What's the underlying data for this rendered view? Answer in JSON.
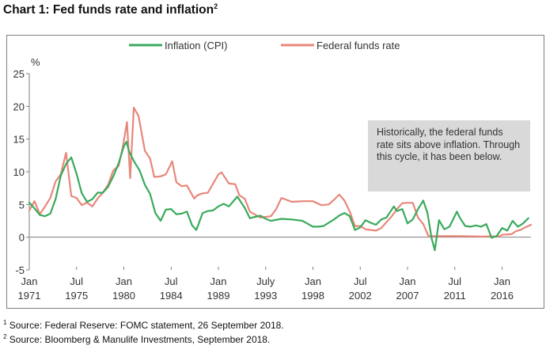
{
  "title": {
    "text": "Chart 1: Fed funds rate and inflation",
    "sup": "2"
  },
  "note": "Historically, the federal funds rate sits above inflation. Through this cycle, it has been below.",
  "sources": [
    {
      "sup": "1",
      "text": "Source: Federal Reserve: FOMC statement, 26 September 2018."
    },
    {
      "sup": "2",
      "text": "Source: Bloomberg & Manulife Investments, September 2018."
    }
  ],
  "colors": {
    "inflation": "#3aaa5c",
    "fed_funds": "#e8877a",
    "axis": "#7f7f7f",
    "note_bg": "#d9d9d9"
  },
  "chart_data": {
    "type": "line",
    "title": "Chart 1: Fed funds rate and inflation",
    "ylabel": "%",
    "ylim": [
      -5,
      25
    ],
    "yticks": [
      -5,
      0,
      5,
      10,
      15,
      20,
      25
    ],
    "xlim": [
      1971.0,
      2018.75
    ],
    "xticks": [
      {
        "x": 1971.0,
        "line1": "Jan",
        "line2": "1971"
      },
      {
        "x": 1975.5,
        "line1": "Jul",
        "line2": "1975"
      },
      {
        "x": 1980.0,
        "line1": "Jan",
        "line2": "1980"
      },
      {
        "x": 1984.5,
        "line1": "Jul",
        "line2": "1984"
      },
      {
        "x": 1989.0,
        "line1": "Jan",
        "line2": "1989"
      },
      {
        "x": 1993.5,
        "line1": "July",
        "line2": "1993"
      },
      {
        "x": 1998.0,
        "line1": "Jan",
        "line2": "1998"
      },
      {
        "x": 2002.5,
        "line1": "Jul",
        "line2": "2002"
      },
      {
        "x": 2007.0,
        "line1": "Jan",
        "line2": "2007"
      },
      {
        "x": 2011.5,
        "line1": "Jul",
        "line2": "2011"
      },
      {
        "x": 2016.0,
        "line1": "Jan",
        "line2": "2016"
      }
    ],
    "grid": false,
    "legend": "top-center",
    "series": [
      {
        "name": "Inflation (CPI)",
        "color": "#3aaa5c",
        "x": [
          1971.0,
          1971.5,
          1972.0,
          1972.5,
          1973.0,
          1973.5,
          1974.0,
          1974.5,
          1975.0,
          1975.5,
          1976.0,
          1976.5,
          1977.0,
          1977.5,
          1978.0,
          1978.5,
          1979.0,
          1979.5,
          1980.0,
          1980.25,
          1980.5,
          1981.0,
          1981.5,
          1982.0,
          1982.5,
          1983.0,
          1983.5,
          1984.0,
          1984.5,
          1985.0,
          1985.5,
          1986.0,
          1986.5,
          1986.9,
          1987.5,
          1988.0,
          1988.5,
          1989.0,
          1989.5,
          1990.0,
          1990.8,
          1991.5,
          1992.0,
          1992.5,
          1993.0,
          1993.5,
          1994.0,
          1995.0,
          1996.0,
          1997.0,
          1998.0,
          1998.5,
          1999.0,
          2000.0,
          2000.5,
          2001.0,
          2001.5,
          2002.0,
          2002.5,
          2003.0,
          2003.5,
          2004.0,
          2004.5,
          2005.0,
          2005.7,
          2006.0,
          2006.5,
          2007.0,
          2007.5,
          2008.0,
          2008.5,
          2008.9,
          2009.3,
          2009.6,
          2010.0,
          2010.5,
          2011.0,
          2011.7,
          2012.0,
          2012.5,
          2013.0,
          2013.5,
          2014.0,
          2014.5,
          2015.0,
          2015.5,
          2016.0,
          2016.5,
          2017.0,
          2017.5,
          2018.0,
          2018.5
        ],
        "y": [
          5.3,
          4.4,
          3.4,
          3.2,
          3.6,
          5.8,
          9.4,
          11.2,
          12.2,
          9.7,
          6.7,
          5.4,
          5.8,
          6.8,
          6.8,
          7.7,
          9.3,
          11.3,
          13.9,
          14.6,
          13.1,
          11.5,
          10.2,
          8.0,
          6.6,
          3.7,
          2.5,
          4.2,
          4.3,
          3.5,
          3.6,
          3.9,
          1.8,
          1.1,
          3.7,
          4.0,
          4.1,
          4.7,
          5.1,
          4.7,
          6.2,
          4.5,
          2.9,
          3.1,
          3.3,
          2.8,
          2.5,
          2.8,
          2.7,
          2.5,
          1.6,
          1.6,
          1.7,
          2.7,
          3.3,
          3.7,
          3.2,
          1.1,
          1.5,
          2.6,
          2.2,
          1.9,
          2.7,
          3.0,
          4.7,
          4.0,
          4.3,
          2.1,
          2.7,
          4.3,
          5.6,
          3.7,
          -0.2,
          -2.0,
          2.6,
          1.2,
          1.6,
          3.9,
          2.9,
          1.7,
          1.6,
          1.8,
          1.6,
          2.0,
          -0.1,
          0.2,
          1.4,
          1.0,
          2.5,
          1.6,
          2.1,
          2.9
        ]
      },
      {
        "name": "Federal funds rate",
        "color": "#e8877a",
        "x": [
          1971.0,
          1971.5,
          1972.0,
          1972.5,
          1973.0,
          1973.5,
          1974.0,
          1974.5,
          1975.0,
          1975.5,
          1976.0,
          1976.5,
          1977.0,
          1977.5,
          1978.0,
          1978.5,
          1979.0,
          1979.5,
          1979.9,
          1980.3,
          1980.6,
          1980.95,
          1981.4,
          1981.8,
          1982.0,
          1982.5,
          1982.9,
          1983.5,
          1984.0,
          1984.6,
          1985.0,
          1985.5,
          1986.0,
          1986.7,
          1987.0,
          1987.5,
          1988.0,
          1989.0,
          1989.3,
          1990.0,
          1990.6,
          1991.0,
          1991.5,
          1992.0,
          1993.0,
          1994.0,
          1994.5,
          1995.0,
          1996.0,
          1997.0,
          1998.0,
          1998.8,
          1999.5,
          2000.0,
          2000.5,
          2001.0,
          2001.5,
          2002.0,
          2002.5,
          2003.0,
          2004.0,
          2004.5,
          2005.0,
          2005.5,
          2006.0,
          2006.5,
          2007.0,
          2007.5,
          2008.0,
          2008.5,
          2009.0,
          2010.0,
          2012.0,
          2014.0,
          2015.8,
          2016.0,
          2016.9,
          2017.3,
          2017.8,
          2018.2,
          2018.75
        ],
        "y": [
          4.1,
          5.5,
          3.5,
          4.7,
          6.0,
          8.5,
          9.6,
          12.9,
          6.3,
          6.0,
          4.9,
          5.3,
          4.7,
          5.9,
          6.8,
          8.0,
          10.2,
          10.9,
          13.8,
          17.6,
          9.0,
          19.8,
          18.5,
          15.0,
          13.2,
          12.0,
          9.2,
          9.3,
          9.6,
          11.6,
          8.4,
          7.8,
          7.9,
          5.9,
          6.4,
          6.7,
          6.8,
          9.6,
          9.9,
          8.2,
          8.1,
          6.4,
          5.9,
          3.9,
          3.0,
          3.2,
          4.3,
          6.0,
          5.4,
          5.5,
          5.5,
          4.9,
          5.0,
          5.7,
          6.5,
          5.6,
          3.9,
          1.7,
          1.7,
          1.2,
          1.0,
          1.4,
          2.3,
          3.2,
          4.3,
          5.2,
          5.25,
          5.25,
          3.0,
          2.0,
          0.16,
          0.15,
          0.15,
          0.1,
          0.14,
          0.37,
          0.45,
          0.9,
          1.15,
          1.5,
          1.9
        ]
      }
    ]
  }
}
